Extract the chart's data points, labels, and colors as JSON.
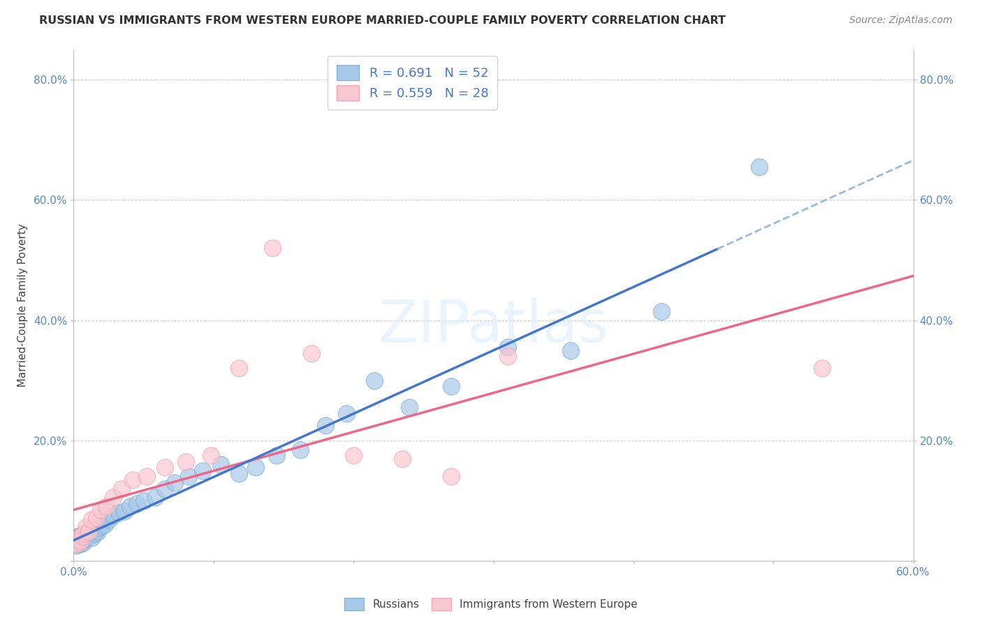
{
  "title": "RUSSIAN VS IMMIGRANTS FROM WESTERN EUROPE MARRIED-COUPLE FAMILY POVERTY CORRELATION CHART",
  "source": "Source: ZipAtlas.com",
  "ylabel": "Married-Couple Family Poverty",
  "xlim": [
    0.0,
    0.6
  ],
  "ylim": [
    0.0,
    0.85
  ],
  "ytick_positions": [
    0.0,
    0.2,
    0.4,
    0.6,
    0.8
  ],
  "ytick_labels": [
    "",
    "20.0%",
    "40.0%",
    "60.0%",
    "80.0%"
  ],
  "xtick_positions": [
    0.0,
    0.1,
    0.2,
    0.3,
    0.4,
    0.5,
    0.6
  ],
  "xtick_labels": [
    "0.0%",
    "",
    "",
    "",
    "",
    "",
    "60.0%"
  ],
  "blue_color": "#7BAFD4",
  "blue_fill": "#A8C8E8",
  "pink_color": "#F4A0B0",
  "pink_fill": "#F8C8D0",
  "blue_line_color": "#4477CC",
  "pink_line_color": "#EE6688",
  "blue_line_dash": "#99BBDD",
  "watermark_text": "ZIPatlas",
  "legend_line1": "R = 0.691   N = 52",
  "legend_line2": "R = 0.559   N = 28",
  "legend_text_color": "#4477CC",
  "russians_x": [
    0.001,
    0.002,
    0.002,
    0.003,
    0.003,
    0.004,
    0.004,
    0.005,
    0.005,
    0.006,
    0.006,
    0.007,
    0.008,
    0.008,
    0.009,
    0.01,
    0.011,
    0.012,
    0.013,
    0.014,
    0.015,
    0.016,
    0.017,
    0.018,
    0.02,
    0.022,
    0.025,
    0.028,
    0.032,
    0.036,
    0.04,
    0.045,
    0.05,
    0.058,
    0.065,
    0.072,
    0.082,
    0.092,
    0.105,
    0.118,
    0.13,
    0.145,
    0.162,
    0.18,
    0.195,
    0.215,
    0.24,
    0.27,
    0.31,
    0.355,
    0.42,
    0.49
  ],
  "russians_y": [
    0.03,
    0.025,
    0.035,
    0.028,
    0.04,
    0.032,
    0.038,
    0.028,
    0.042,
    0.035,
    0.038,
    0.03,
    0.035,
    0.042,
    0.038,
    0.04,
    0.045,
    0.042,
    0.038,
    0.048,
    0.045,
    0.05,
    0.048,
    0.055,
    0.058,
    0.06,
    0.068,
    0.075,
    0.08,
    0.082,
    0.09,
    0.095,
    0.1,
    0.105,
    0.12,
    0.13,
    0.14,
    0.15,
    0.16,
    0.145,
    0.155,
    0.175,
    0.185,
    0.225,
    0.245,
    0.3,
    0.255,
    0.29,
    0.355,
    0.35,
    0.415,
    0.655
  ],
  "western_x": [
    0.001,
    0.002,
    0.003,
    0.004,
    0.005,
    0.006,
    0.007,
    0.009,
    0.011,
    0.013,
    0.016,
    0.019,
    0.023,
    0.028,
    0.034,
    0.042,
    0.052,
    0.065,
    0.08,
    0.098,
    0.118,
    0.142,
    0.17,
    0.2,
    0.235,
    0.27,
    0.31,
    0.535
  ],
  "western_y": [
    0.03,
    0.028,
    0.035,
    0.038,
    0.032,
    0.04,
    0.045,
    0.055,
    0.048,
    0.068,
    0.072,
    0.085,
    0.09,
    0.105,
    0.12,
    0.135,
    0.14,
    0.155,
    0.165,
    0.175,
    0.32,
    0.52,
    0.345,
    0.175,
    0.17,
    0.14,
    0.34,
    0.32
  ]
}
